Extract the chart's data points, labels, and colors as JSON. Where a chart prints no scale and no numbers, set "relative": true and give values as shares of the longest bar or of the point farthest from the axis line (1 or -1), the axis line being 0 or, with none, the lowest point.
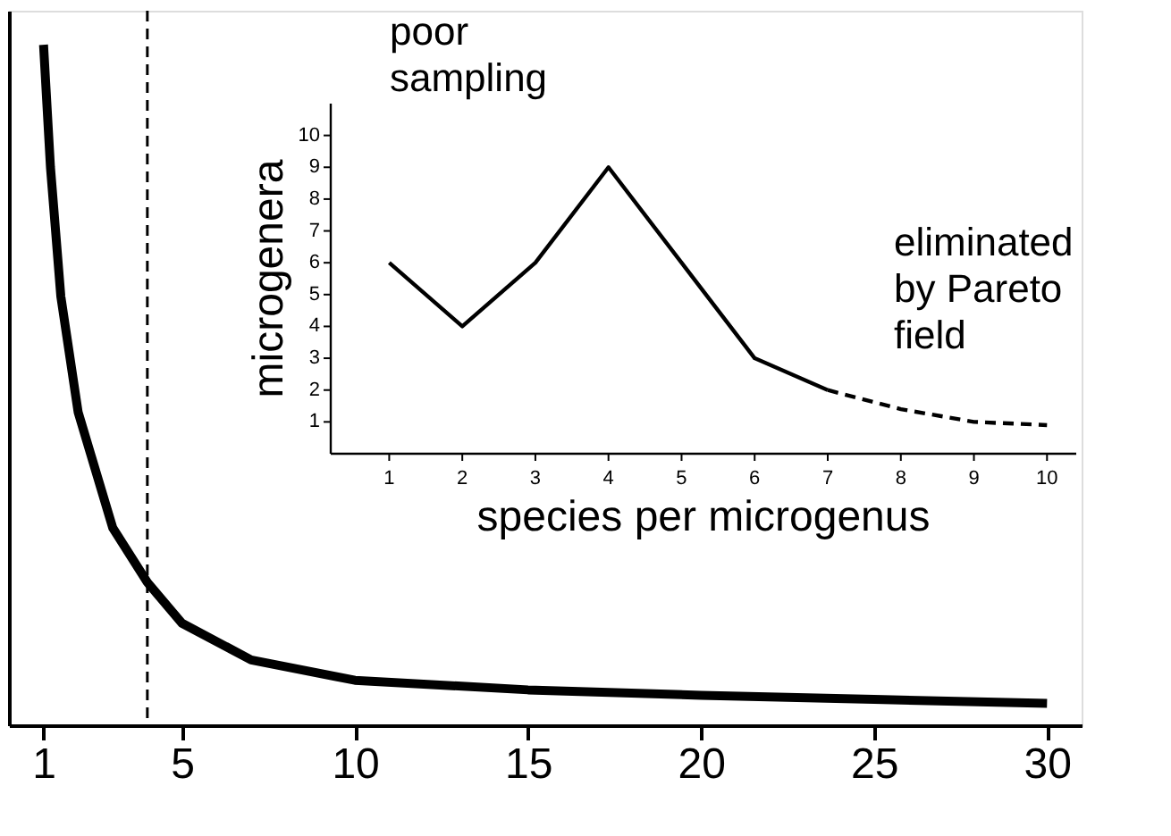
{
  "chart_data": [
    {
      "type": "line",
      "relative": true,
      "x": [
        1,
        1.2,
        1.5,
        2,
        3,
        4,
        5,
        7,
        10,
        15,
        20,
        25,
        30
      ],
      "series": [
        {
          "color": "#000000",
          "values": [
            1,
            0.82,
            0.63,
            0.46,
            0.29,
            0.21,
            0.15,
            0.096,
            0.066,
            0.052,
            0.044,
            0.038,
            0.032
          ]
        }
      ],
      "xlim": [
        0,
        31
      ],
      "xticks": [
        1,
        5,
        10,
        15,
        20,
        25,
        30
      ],
      "tick_labels": "x",
      "grid": false,
      "marker": "none",
      "ref_lines": [
        {
          "axis": "x",
          "value": 4,
          "line_style": "dashed",
          "color": "#000000"
        }
      ]
    },
    {
      "type": "line",
      "xlabel": "species per microgenus",
      "ylabel": "microgenera",
      "series": [
        {
          "color": "#000000",
          "line_style": "solid",
          "x": [
            1,
            2,
            3,
            4,
            5,
            6,
            7
          ],
          "values": [
            6,
            4,
            6,
            9,
            6,
            3,
            2
          ]
        },
        {
          "color": "#000000",
          "line_style": "dashed",
          "x": [
            7,
            8,
            9,
            10
          ],
          "values": [
            2,
            1.4,
            1,
            0.9
          ]
        }
      ],
      "xlim": [
        0.2,
        10.4
      ],
      "ylim": [
        0,
        11
      ],
      "xticks": [
        1,
        2,
        3,
        4,
        5,
        6,
        7,
        8,
        9,
        10
      ],
      "yticks": [
        1,
        2,
        3,
        4,
        5,
        6,
        7,
        8,
        9,
        10
      ],
      "marker": "none",
      "annotations": [
        "poor sampling",
        "eliminated by Pareto field"
      ]
    }
  ]
}
